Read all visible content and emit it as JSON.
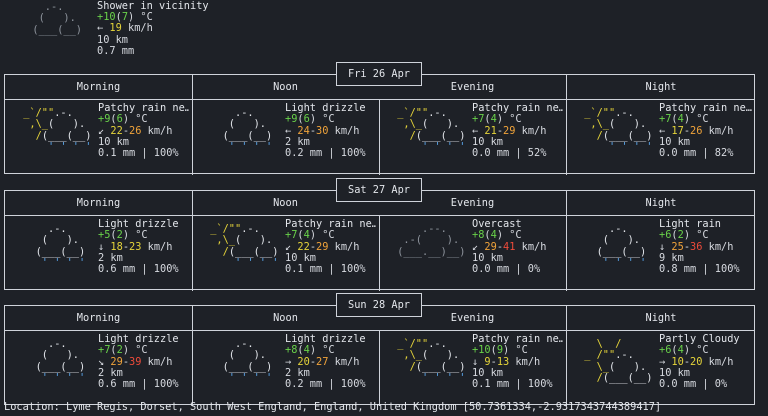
{
  "current": {
    "desc": "Shower in vicinity",
    "temp": "+10",
    "feels": "7",
    "unit": " °C",
    "wind_arrow": "←",
    "wind": "19",
    "wind_unit": " km/h",
    "visibility": "10 km",
    "precip": "0.7 mm"
  },
  "day_headers": [
    "Morning",
    "Noon",
    "Evening",
    "Night"
  ],
  "days": [
    {
      "date": "Fri 26 Apr",
      "periods": [
        {
          "icon": "patchy-rain",
          "desc": "Patchy rain ne…",
          "temp": "+9",
          "feels": "6",
          "arrow": "↙",
          "wmin": "22",
          "wmax": "26",
          "vis": "10 km",
          "precip": "0.1 mm | 100%"
        },
        {
          "icon": "drizzle",
          "desc": "Light drizzle",
          "temp": "+9",
          "feels": "6",
          "arrow": "←",
          "wmin": "24",
          "wmax": "30",
          "vis": "2 km",
          "precip": "0.2 mm | 100%"
        },
        {
          "icon": "patchy-rain",
          "desc": "Patchy rain ne…",
          "temp": "+7",
          "feels": "4",
          "arrow": "←",
          "wmin": "21",
          "wmax": "29",
          "vis": "10 km",
          "precip": "0.0 mm | 52%"
        },
        {
          "icon": "patchy-rain",
          "desc": "Patchy rain ne…",
          "temp": "+7",
          "feels": "4",
          "arrow": "←",
          "wmin": "17",
          "wmax": "26",
          "vis": "10 km",
          "precip": "0.0 mm | 82%"
        }
      ]
    },
    {
      "date": "Sat 27 Apr",
      "periods": [
        {
          "icon": "drizzle",
          "desc": "Light drizzle",
          "temp": "+5",
          "feels": "2",
          "arrow": "↓",
          "wmin": "18",
          "wmax": "23",
          "vis": "2 km",
          "precip": "0.6 mm | 100%"
        },
        {
          "icon": "patchy-rain",
          "desc": "Patchy rain ne…",
          "temp": "+7",
          "feels": "4",
          "arrow": "↙",
          "wmin": "22",
          "wmax": "29",
          "vis": "10 km",
          "precip": "0.1 mm | 100%"
        },
        {
          "icon": "overcast",
          "desc": "Overcast",
          "temp": "+8",
          "feels": "4",
          "arrow": "↙",
          "wmin": "29",
          "wmax": "41",
          "vis": "10 km",
          "precip": "0.0 mm | 0%"
        },
        {
          "icon": "drizzle",
          "desc": "Light rain",
          "temp": "+6",
          "feels": "2",
          "arrow": "↓",
          "wmin": "25",
          "wmax": "36",
          "vis": "9 km",
          "precip": "0.8 mm | 100%"
        }
      ]
    },
    {
      "date": "Sun 28 Apr",
      "periods": [
        {
          "icon": "drizzle",
          "desc": "Light drizzle",
          "temp": "+7",
          "feels": "2",
          "arrow": "↘",
          "wmin": "29",
          "wmax": "39",
          "vis": "2 km",
          "precip": "0.6 mm | 100%"
        },
        {
          "icon": "drizzle",
          "desc": "Light drizzle",
          "temp": "+8",
          "feels": "4",
          "arrow": "→",
          "wmin": "20",
          "wmax": "27",
          "vis": "2 km",
          "precip": "0.2 mm | 100%"
        },
        {
          "icon": "patchy-rain",
          "desc": "Patchy rain ne…",
          "temp": "+10",
          "feels": "9",
          "arrow": "↓",
          "wmin": "9",
          "wmax": "13",
          "vis": "10 km",
          "precip": "0.1 mm | 100%"
        },
        {
          "icon": "partly-cloudy",
          "desc": "Partly Cloudy",
          "temp": "+6",
          "feels": "4",
          "arrow": "→",
          "wmin": "10",
          "wmax": "20",
          "vis": "10 km",
          "precip": "0.0 mm | 0%"
        }
      ]
    }
  ],
  "location": "Location: Lyme Regis, Dorset, South West England, England, United Kingdom [50.7361334,-2.9317343744389417]"
}
